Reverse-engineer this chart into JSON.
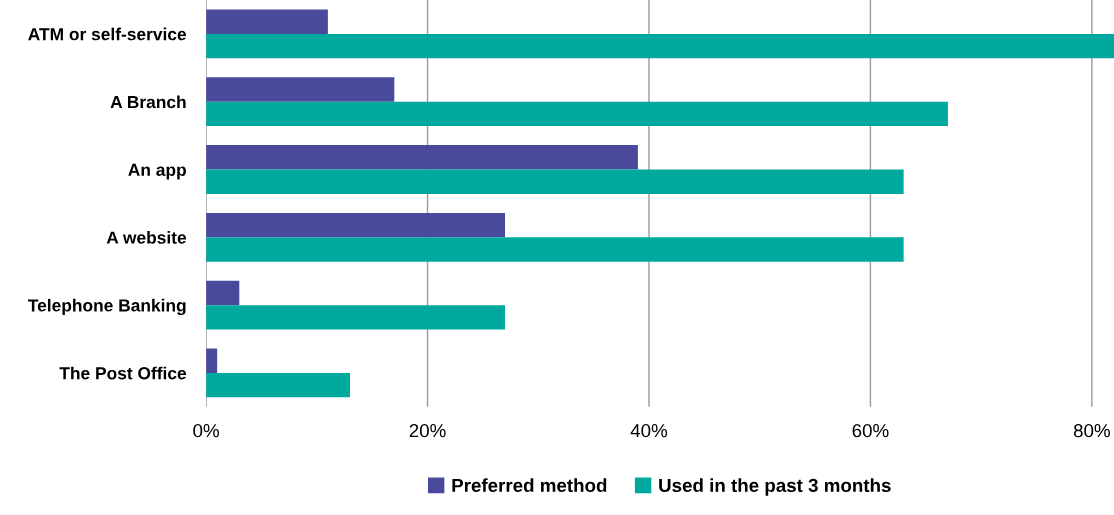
{
  "chart_data": {
    "type": "bar",
    "orientation": "horizontal",
    "categories": [
      "ATM or self-service",
      "A Branch",
      "An app",
      "A website",
      "Telephone Banking",
      "The Post Office"
    ],
    "series": [
      {
        "name": "Preferred method",
        "color": "#4a4a9c",
        "values": [
          11,
          17,
          39,
          27,
          3,
          1
        ]
      },
      {
        "name": "Used in the past 3 months",
        "color": "#00a99d",
        "values": [
          82,
          67,
          63,
          63,
          27,
          13
        ]
      }
    ],
    "xlim": [
      0,
      82
    ],
    "xticks": [
      {
        "value": 0,
        "label": "0%"
      },
      {
        "value": 20,
        "label": "20%"
      },
      {
        "value": 40,
        "label": "40%"
      },
      {
        "value": 60,
        "label": "60%"
      },
      {
        "value": 80,
        "label": "80%"
      }
    ],
    "grid": "x",
    "legend": "bottom"
  }
}
